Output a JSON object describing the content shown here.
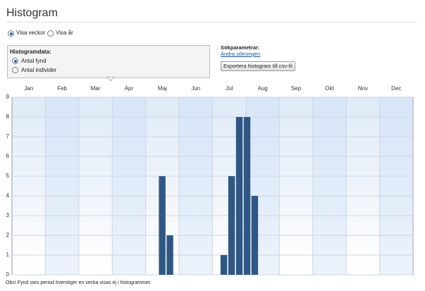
{
  "ui": {
    "title": "Histogram",
    "view_options": [
      "Visa veckor",
      "Visa år"
    ],
    "panel_title": "Histogramdata:",
    "data_options": [
      "Antal fynd",
      "Antal individer"
    ],
    "params_title": "Sökparametrar:",
    "params_link": "Ändra sökningen",
    "export_button": "Exportera histogram till csv-fil",
    "footnote": "Obs! Fynd vars period överstiger en vecka visas ej i histogrammet."
  },
  "chart_data": {
    "type": "bar",
    "categories": [
      "Jan",
      "Feb",
      "Mar",
      "Apr",
      "Maj",
      "Jun",
      "Jul",
      "Aug",
      "Sep",
      "Okt",
      "Nov",
      "Dec"
    ],
    "x": [
      19,
      20,
      27,
      28,
      29,
      30,
      31
    ],
    "values": [
      5,
      2,
      1,
      5,
      8,
      8,
      4
    ],
    "color": "#2e5784",
    "xlim": [
      -0.5,
      51.5
    ],
    "ylim": [
      0,
      9
    ],
    "yticks": [
      0,
      1,
      2,
      3,
      4,
      5,
      6,
      7,
      8,
      9
    ],
    "grid": true
  }
}
